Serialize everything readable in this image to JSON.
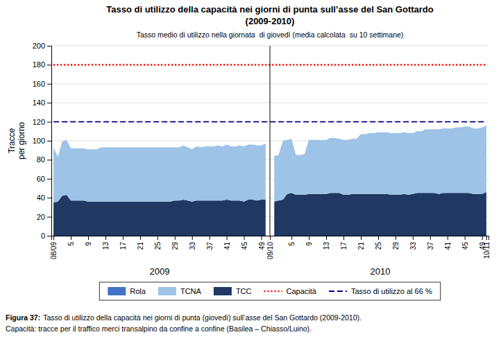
{
  "chart_data": {
    "type": "area",
    "stacked": true,
    "title": [
      "Tasso di utilizzo della capacità nei giorni di punta sull’asse del San Gottardo",
      "(2009-2010)"
    ],
    "subtitle": "Tasso medio di utilizzo nella giornata  di giovedì (media calcolata  su 10 settimane)",
    "y_label": [
      "Tracce",
      "per giorno"
    ],
    "annotations": [
      "2009",
      "2010"
    ],
    "caption": {
      "label": "Figura 37:",
      "text": "Tasso di utilizzo della capacità nei giorni di punta (giovedì) sull’asse del San Gottardo (2009-2010).",
      "note": "Capacità: tracce per il traffico merci transalpino da confine a confine (Basilea – Chiasso/Luino)."
    },
    "categories": [
      "08/09",
      null,
      null,
      null,
      "5",
      null,
      null,
      null,
      "9",
      null,
      null,
      null,
      "13",
      null,
      null,
      null,
      "17",
      null,
      null,
      null,
      "21",
      null,
      null,
      null,
      "25",
      null,
      null,
      null,
      "29",
      null,
      null,
      null,
      "33",
      null,
      null,
      null,
      "37",
      null,
      null,
      null,
      "41",
      null,
      null,
      null,
      "45",
      null,
      null,
      null,
      "49",
      null,
      "09/10",
      null,
      null,
      null,
      null,
      "5",
      null,
      null,
      null,
      "9",
      null,
      null,
      null,
      "13",
      null,
      null,
      null,
      "17",
      null,
      null,
      null,
      "21",
      null,
      null,
      null,
      "25",
      null,
      null,
      null,
      "29",
      null,
      null,
      null,
      "33",
      null,
      null,
      null,
      "37",
      null,
      null,
      null,
      "41",
      null,
      null,
      null,
      "45",
      null,
      null,
      null,
      "49",
      "10/11"
    ],
    "series": [
      {
        "name": "TCC",
        "color": "#1F3864",
        "values": [
          35,
          36,
          42,
          43,
          37,
          37,
          37,
          37,
          36,
          36,
          36,
          36,
          36,
          36,
          36,
          36,
          36,
          36,
          36,
          36,
          36,
          36,
          36,
          36,
          36,
          36,
          36,
          36,
          37,
          37,
          38,
          37,
          36,
          37,
          37,
          37,
          37,
          37,
          37,
          37,
          38,
          37,
          37,
          37,
          36,
          38,
          38,
          37,
          38,
          38,
          null,
          36,
          37,
          38,
          44,
          45,
          43,
          43,
          43,
          44,
          44,
          44,
          44,
          44,
          45,
          45,
          45,
          43,
          43,
          44,
          44,
          44,
          44,
          44,
          44,
          44,
          44,
          44,
          43,
          43,
          43,
          44,
          43,
          44,
          45,
          45,
          45,
          45,
          45,
          44,
          45,
          45,
          45,
          45,
          45,
          45,
          45,
          44,
          44,
          44,
          46
        ]
      },
      {
        "name": "TCNA",
        "color": "#9DC3E6",
        "values": [
          58,
          47,
          57,
          58,
          55,
          55,
          55,
          55,
          55,
          55,
          55,
          57,
          57,
          57,
          57,
          57,
          57,
          57,
          57,
          57,
          57,
          57,
          57,
          57,
          57,
          57,
          57,
          57,
          56,
          56,
          57,
          56,
          55,
          57,
          56,
          57,
          57,
          57,
          58,
          57,
          58,
          57,
          57,
          58,
          58,
          58,
          58,
          58,
          57,
          59,
          null,
          48,
          48,
          62,
          57,
          57,
          42,
          42,
          43,
          57,
          57,
          57,
          57,
          57,
          58,
          58,
          57,
          58,
          58,
          58,
          58,
          63,
          63,
          64,
          64,
          65,
          65,
          65,
          65,
          65,
          65,
          65,
          65,
          64,
          65,
          65,
          67,
          67,
          67,
          68,
          68,
          68,
          68,
          69,
          69,
          70,
          70,
          69,
          69,
          70,
          70
        ]
      },
      {
        "name": "Rola",
        "color": "#4472C4",
        "values": [
          0,
          0,
          0,
          0,
          0,
          0,
          0,
          0,
          0,
          0,
          0,
          0,
          0,
          0,
          0,
          0,
          0,
          0,
          0,
          0,
          0,
          0,
          0,
          0,
          0,
          0,
          0,
          0,
          0,
          0,
          0,
          0,
          0,
          0,
          0,
          0,
          0,
          0,
          0,
          0,
          0,
          0,
          0,
          0,
          0,
          0,
          0,
          0,
          0,
          0,
          null,
          0,
          0,
          0,
          0,
          0,
          0,
          0,
          0,
          0,
          0,
          0,
          0,
          0,
          0,
          0,
          0,
          0,
          0,
          0,
          0,
          0,
          0,
          0,
          0,
          0,
          0,
          0,
          0,
          0,
          0,
          0,
          0,
          0,
          0,
          0,
          0,
          0,
          0,
          0,
          0,
          0,
          0,
          0,
          0,
          0,
          0,
          0,
          0,
          0,
          0
        ]
      }
    ],
    "reference_lines": [
      {
        "name": "Capacità",
        "value": 180,
        "color": "#FF0000",
        "line_style": "dotted"
      },
      {
        "name": "Tasso di utilizzo al 66 %",
        "value": 120,
        "color": "#00008B",
        "line_style": "dashed"
      }
    ],
    "ylim": [
      0,
      200
    ],
    "yticks": [
      0,
      20,
      40,
      60,
      80,
      100,
      120,
      140,
      160,
      180,
      200
    ],
    "grid": true,
    "legend": "bottom"
  }
}
